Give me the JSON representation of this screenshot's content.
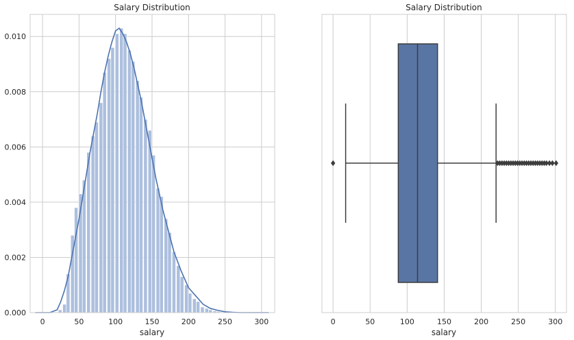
{
  "chart_data": [
    {
      "type": "histogram-kde",
      "title": "Salary Distribution",
      "xlabel": "salary",
      "ylabel": "",
      "xlim": [
        -17,
        318
      ],
      "ylim": [
        0,
        0.0108
      ],
      "grid": true,
      "xticks": [
        0,
        50,
        100,
        150,
        200,
        250,
        300
      ],
      "yticks": [
        0.0,
        0.002,
        0.004,
        0.006,
        0.008,
        0.01
      ],
      "ytick_labels": [
        "0.000",
        "0.002",
        "0.004",
        "0.006",
        "0.008",
        "0.010"
      ],
      "bar_color": "#a8bcdc",
      "line_color": "#4c72b0",
      "bins": [
        {
          "x": 24,
          "y": 0.0001
        },
        {
          "x": 30,
          "y": 0.0003
        },
        {
          "x": 35,
          "y": 0.0014
        },
        {
          "x": 41,
          "y": 0.0028
        },
        {
          "x": 46,
          "y": 0.0038
        },
        {
          "x": 52,
          "y": 0.0043
        },
        {
          "x": 57,
          "y": 0.0048
        },
        {
          "x": 63,
          "y": 0.0058
        },
        {
          "x": 69,
          "y": 0.0064
        },
        {
          "x": 74,
          "y": 0.0069
        },
        {
          "x": 80,
          "y": 0.0076
        },
        {
          "x": 85,
          "y": 0.0087
        },
        {
          "x": 91,
          "y": 0.0092
        },
        {
          "x": 96,
          "y": 0.0096
        },
        {
          "x": 102,
          "y": 0.0101
        },
        {
          "x": 108,
          "y": 0.0103
        },
        {
          "x": 113,
          "y": 0.0101
        },
        {
          "x": 119,
          "y": 0.0095
        },
        {
          "x": 124,
          "y": 0.0091
        },
        {
          "x": 130,
          "y": 0.0084
        },
        {
          "x": 135,
          "y": 0.0078
        },
        {
          "x": 141,
          "y": 0.007
        },
        {
          "x": 147,
          "y": 0.0066
        },
        {
          "x": 152,
          "y": 0.0057
        },
        {
          "x": 158,
          "y": 0.0045
        },
        {
          "x": 163,
          "y": 0.0042
        },
        {
          "x": 169,
          "y": 0.0034
        },
        {
          "x": 174,
          "y": 0.0029
        },
        {
          "x": 180,
          "y": 0.0022
        },
        {
          "x": 186,
          "y": 0.0017
        },
        {
          "x": 191,
          "y": 0.0013
        },
        {
          "x": 197,
          "y": 0.001
        },
        {
          "x": 202,
          "y": 0.0007
        },
        {
          "x": 208,
          "y": 0.0005
        },
        {
          "x": 213,
          "y": 0.0004
        },
        {
          "x": 219,
          "y": 0.0002
        },
        {
          "x": 225,
          "y": 0.00015
        },
        {
          "x": 230,
          "y": 0.0001
        },
        {
          "x": 236,
          "y": 6e-05
        },
        {
          "x": 241,
          "y": 4e-05
        },
        {
          "x": 247,
          "y": 2e-05
        }
      ],
      "kde": {
        "x": [
          -10,
          0,
          10,
          20,
          25,
          30,
          35,
          40,
          45,
          50,
          55,
          60,
          65,
          70,
          75,
          80,
          85,
          90,
          95,
          100,
          105,
          110,
          115,
          120,
          125,
          130,
          135,
          140,
          145,
          150,
          155,
          160,
          165,
          170,
          175,
          180,
          190,
          200,
          210,
          220,
          230,
          240,
          250,
          260,
          270,
          280,
          290,
          300,
          310
        ],
        "y": [
          0,
          0,
          0,
          0.0001,
          0.0004,
          0.0008,
          0.0013,
          0.002,
          0.0027,
          0.0034,
          0.0042,
          0.005,
          0.0058,
          0.0065,
          0.0072,
          0.008,
          0.0087,
          0.0093,
          0.0098,
          0.0102,
          0.0103,
          0.0101,
          0.0098,
          0.0094,
          0.0089,
          0.0083,
          0.0077,
          0.007,
          0.0063,
          0.0056,
          0.0049,
          0.0043,
          0.0037,
          0.0032,
          0.0027,
          0.0022,
          0.0015,
          0.0009,
          0.0006,
          0.0003,
          0.00015,
          8e-05,
          3e-05,
          1e-05,
          0,
          0,
          0,
          0,
          0
        ]
      }
    },
    {
      "type": "box",
      "title": "Salary Distribution",
      "xlabel": "salary",
      "xlim": [
        -15,
        315
      ],
      "grid": true,
      "xticks": [
        0,
        50,
        100,
        150,
        200,
        250,
        300
      ],
      "box_color": "#5975a4",
      "line_color": "#3d3d3d",
      "stats": {
        "whisker_low": 17,
        "q1": 88,
        "median": 114,
        "q3": 141,
        "whisker_high": 220
      },
      "outliers": [
        0,
        222,
        225,
        228,
        231,
        234,
        237,
        240,
        243,
        246,
        249,
        252,
        255,
        258,
        261,
        264,
        267,
        270,
        273,
        276,
        279,
        282,
        285,
        288,
        292,
        296,
        301
      ]
    }
  ]
}
